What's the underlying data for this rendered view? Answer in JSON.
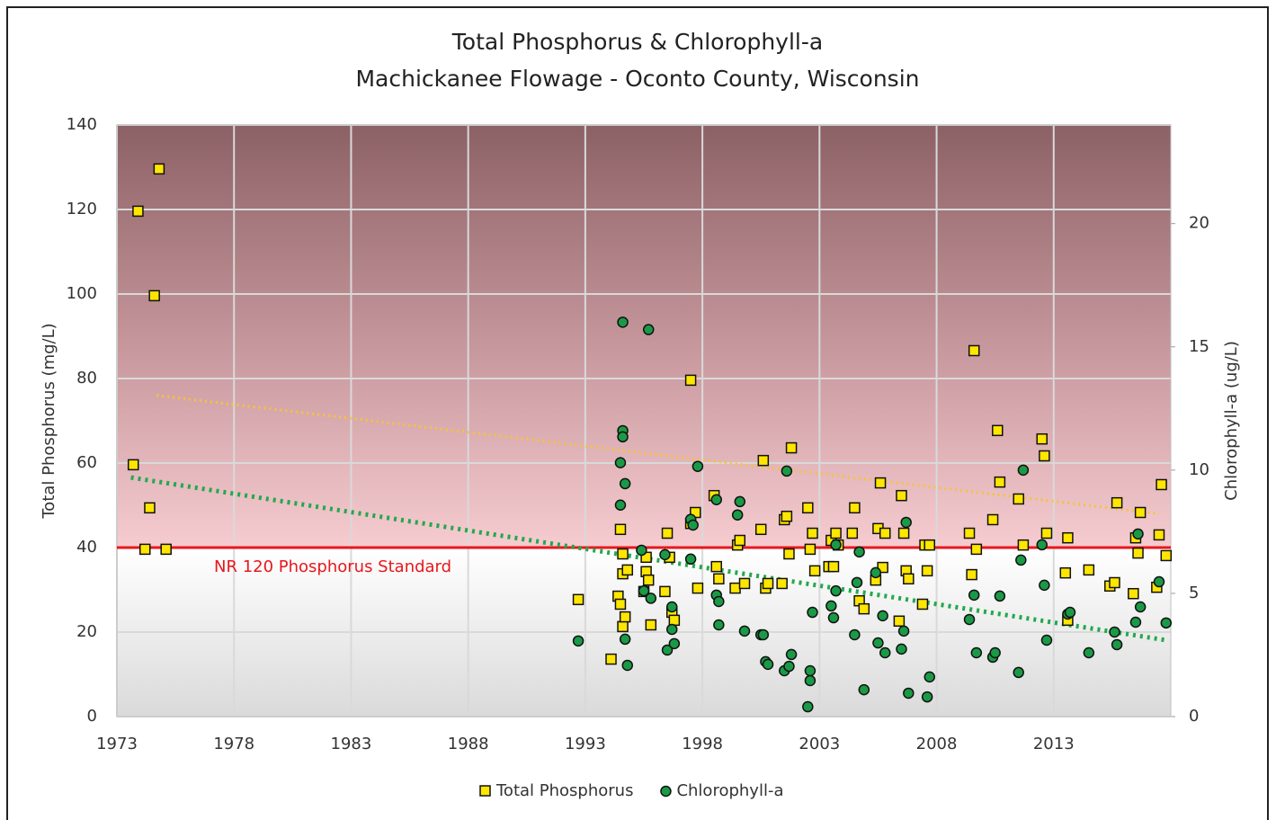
{
  "chart_data": {
    "type": "scatter",
    "title": "Total Phosphorus & Chlorophyll-a",
    "subtitle": "Machickanee Flowage - Oconto County, Wisconsin",
    "y_label": "Total Phosphorus (mg/L)",
    "y2_label": "Chlorophyll-a (ug/L)",
    "xlim": [
      1973,
      2018
    ],
    "xticks": [
      1973,
      1978,
      1983,
      1988,
      1993,
      1998,
      2003,
      2008,
      2013
    ],
    "ylim": [
      0,
      140
    ],
    "yticks": [
      0,
      20,
      40,
      60,
      80,
      100,
      120,
      140
    ],
    "y2lim": [
      0,
      24
    ],
    "y2ticks": [
      0,
      5,
      10,
      15,
      20
    ],
    "grid": true,
    "legend": "bottom",
    "reference_line": {
      "value": 40,
      "label": "NR 120 Phosphorus Standard",
      "color": "#e8171c"
    },
    "series": [
      {
        "name": "Total Phosphorus",
        "color": "#ffe600",
        "marker": "square",
        "x": [
          1973.7,
          1973.9,
          1974.2,
          1974.4,
          1974.6,
          1974.8,
          1975.1,
          1992.7,
          1994.1,
          1994.4,
          1994.5,
          1994.5,
          1994.6,
          1994.6,
          1994.6,
          1994.7,
          1994.8,
          1995.5,
          1995.6,
          1995.6,
          1995.7,
          1995.8,
          1996.4,
          1996.5,
          1996.6,
          1996.7,
          1996.8,
          1997.5,
          1997.5,
          1997.7,
          1997.8,
          1998.5,
          1998.6,
          1998.7,
          1999.4,
          1999.5,
          1999.6,
          1999.8,
          2000.5,
          2000.6,
          2000.7,
          2000.8,
          2001.4,
          2001.5,
          2001.6,
          2001.7,
          2001.8,
          2002.5,
          2002.6,
          2002.7,
          2002.8,
          2003.4,
          2003.5,
          2003.6,
          2003.7,
          2003.8,
          2004.4,
          2004.5,
          2004.7,
          2004.9,
          2005.4,
          2005.5,
          2005.6,
          2005.7,
          2005.8,
          2006.4,
          2006.5,
          2006.6,
          2006.7,
          2006.8,
          2007.4,
          2007.5,
          2007.6,
          2007.7,
          2009.4,
          2009.5,
          2009.6,
          2009.7,
          2010.4,
          2010.6,
          2010.7,
          2011.5,
          2011.7,
          2012.5,
          2012.6,
          2012.7,
          2013.5,
          2013.6,
          2013.6,
          2014.5,
          2015.4,
          2015.6,
          2015.7,
          2016.4,
          2016.5,
          2016.6,
          2016.7,
          2017.4,
          2017.5,
          2017.6,
          2017.8
        ],
        "values": [
          59.6,
          119.6,
          39.6,
          49.4,
          99.6,
          129.6,
          39.6,
          27.7,
          13.6,
          28.5,
          44.3,
          26.6,
          33.8,
          38.5,
          21.3,
          23.6,
          34.7,
          29.6,
          37.7,
          34.3,
          32.3,
          21.7,
          29.6,
          43.4,
          37.7,
          24.7,
          22.8,
          45.7,
          79.6,
          48.3,
          30.4,
          52.3,
          35.5,
          32.6,
          30.4,
          40.6,
          41.7,
          31.5,
          44.3,
          60.6,
          30.4,
          31.5,
          31.5,
          46.6,
          47.4,
          38.5,
          63.6,
          49.4,
          39.6,
          43.4,
          34.5,
          35.5,
          41.7,
          35.5,
          43.4,
          40.6,
          43.4,
          49.4,
          27.4,
          25.5,
          32.3,
          44.5,
          55.3,
          35.3,
          43.4,
          22.6,
          52.3,
          43.4,
          34.5,
          32.6,
          26.6,
          40.6,
          34.5,
          40.6,
          43.4,
          33.6,
          86.6,
          39.6,
          46.6,
          67.7,
          55.5,
          51.5,
          40.6,
          65.7,
          61.7,
          43.4,
          34.0,
          42.3,
          22.8,
          34.7,
          30.9,
          31.7,
          50.6,
          29.1,
          42.3,
          38.7,
          48.3,
          30.6,
          43.0,
          54.9,
          38.1
        ]
      },
      {
        "name": "Chlorophyll-a",
        "color": "#1a9a46",
        "marker": "circle",
        "axis": "y2",
        "x": [
          1992.7,
          1994.5,
          1994.5,
          1994.6,
          1994.6,
          1994.6,
          1994.7,
          1994.7,
          1994.8,
          1995.4,
          1995.5,
          1995.7,
          1995.8,
          1996.4,
          1996.5,
          1996.7,
          1996.7,
          1996.8,
          1997.5,
          1997.5,
          1997.6,
          1997.8,
          1998.6,
          1998.6,
          1998.7,
          1998.7,
          1999.5,
          1999.6,
          1999.8,
          2000.5,
          2000.6,
          2000.7,
          2000.8,
          2001.6,
          2001.5,
          2001.7,
          2001.8,
          2002.6,
          2002.6,
          2002.5,
          2002.7,
          2003.5,
          2003.6,
          2003.7,
          2003.7,
          2004.5,
          2004.6,
          2004.7,
          2004.9,
          2005.4,
          2005.5,
          2005.7,
          2005.8,
          2006.5,
          2006.6,
          2006.7,
          2006.8,
          2007.6,
          2007.7,
          2009.4,
          2009.6,
          2009.7,
          2010.4,
          2010.5,
          2010.7,
          2011.5,
          2011.6,
          2011.7,
          2012.5,
          2012.6,
          2012.7,
          2013.6,
          2013.7,
          2014.5,
          2015.6,
          2015.7,
          2016.5,
          2016.6,
          2016.7,
          2017.5,
          2017.8
        ],
        "values": [
          3.07,
          10.3,
          8.58,
          16.0,
          11.6,
          11.35,
          9.45,
          3.14,
          2.08,
          6.75,
          5.1,
          15.7,
          4.8,
          6.57,
          2.7,
          4.45,
          3.54,
          2.96,
          6.39,
          8.0,
          7.77,
          10.15,
          8.8,
          4.93,
          4.67,
          3.72,
          8.18,
          8.72,
          3.47,
          3.32,
          3.32,
          2.23,
          2.12,
          9.96,
          1.86,
          2.04,
          2.52,
          1.86,
          1.46,
          0.4,
          4.23,
          4.49,
          4.01,
          5.1,
          6.97,
          3.32,
          5.44,
          6.68,
          1.09,
          5.84,
          2.99,
          4.09,
          2.59,
          2.74,
          3.47,
          7.88,
          0.95,
          0.8,
          1.61,
          3.94,
          4.93,
          2.59,
          2.41,
          2.59,
          4.89,
          1.79,
          6.35,
          10.0,
          6.97,
          5.33,
          3.1,
          4.16,
          4.23,
          2.59,
          3.43,
          2.92,
          3.83,
          7.41,
          4.45,
          5.47,
          3.8
        ]
      }
    ],
    "trendlines": [
      {
        "color": "#f5c33b",
        "x": [
          1974.7,
          2017.5
        ],
        "values": [
          76,
          48
        ]
      },
      {
        "color": "#23a84e",
        "axis": "y2",
        "x": [
          1973.6,
          2017.8
        ],
        "values": [
          9.7,
          3.1
        ]
      }
    ]
  }
}
